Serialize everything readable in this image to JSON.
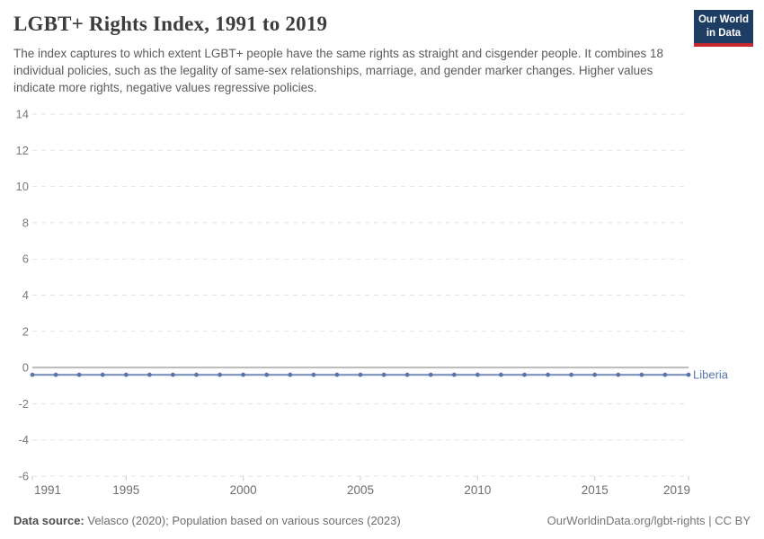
{
  "header": {
    "title": "LGBT+ Rights Index, 1991 to 2019",
    "subtitle": "The index captures to which extent LGBT+ people have the same rights as straight and cisgender people. It combines 18 individual policies, such as the legality of same-sex relationships, marriage, and gender marker changes. Higher values indicate more rights, negative values regressive policies.",
    "logo": {
      "line1": "Our World",
      "line2": "in Data",
      "bg_color": "#1d3d63",
      "accent_color": "#c5292f"
    }
  },
  "chart_data": {
    "type": "line",
    "title": "LGBT+ Rights Index, 1991 to 2019",
    "xlabel": "",
    "ylabel": "",
    "xlim": [
      1991,
      2019
    ],
    "ylim": [
      -6,
      14
    ],
    "x_ticks": [
      1991,
      1995,
      2000,
      2005,
      2010,
      2015,
      2019
    ],
    "y_ticks": [
      14,
      12,
      10,
      8,
      6,
      4,
      2,
      0,
      -2,
      -4,
      -6
    ],
    "grid": "horizontal-dashed",
    "legend_position": "end-of-line-label",
    "x": [
      1991,
      1992,
      1993,
      1994,
      1995,
      1996,
      1997,
      1998,
      1999,
      2000,
      2001,
      2002,
      2003,
      2004,
      2005,
      2006,
      2007,
      2008,
      2009,
      2010,
      2011,
      2012,
      2013,
      2014,
      2015,
      2016,
      2017,
      2018,
      2019
    ],
    "series": [
      {
        "name": "Liberia",
        "values": [
          -0.4,
          -0.4,
          -0.4,
          -0.4,
          -0.4,
          -0.4,
          -0.4,
          -0.4,
          -0.4,
          -0.4,
          -0.4,
          -0.4,
          -0.4,
          -0.4,
          -0.4,
          -0.4,
          -0.4,
          -0.4,
          -0.4,
          -0.4,
          -0.4,
          -0.4,
          -0.4,
          -0.4,
          -0.4,
          -0.4,
          -0.4,
          -0.4,
          -0.4
        ],
        "line_color": "#7289b7",
        "marker_color": "#5674a9",
        "label_color": "#5777ac"
      }
    ],
    "colors": {
      "gridline": "#e2e2e2",
      "zero_line": "#bababa",
      "y_tick_label": "#7a7a7a",
      "x_tick_label": "#6e6e6e",
      "axis_tick": "#cccccc"
    }
  },
  "footer": {
    "source_label": "Data source:",
    "source_text": "Velasco (2020); Population based on various sources (2023)",
    "attribution": "OurWorldinData.org/lgbt-rights | CC BY"
  }
}
